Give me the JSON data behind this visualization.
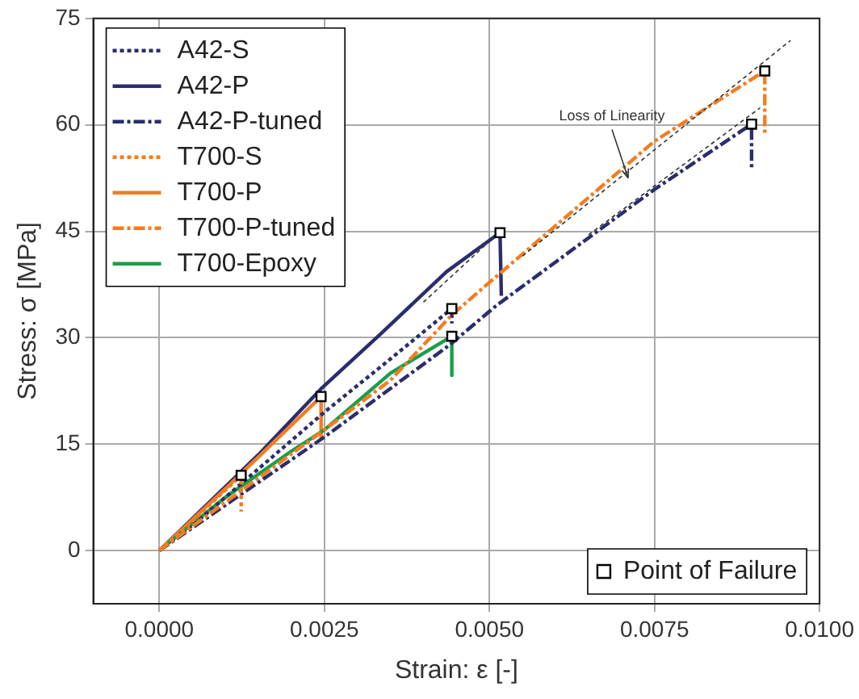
{
  "chart_data": {
    "type": "line",
    "xlabel": "Strain: ε [-]",
    "ylabel": "Stress: σ [MPa]",
    "xlim": [
      -0.001,
      0.01
    ],
    "xticks": [
      {
        "value": 0,
        "label": "0.0000"
      },
      {
        "value": 0.0025,
        "label": "0.0025"
      },
      {
        "value": 0.005,
        "label": "0.0050"
      },
      {
        "value": 0.0075,
        "label": "0.0075"
      },
      {
        "value": 0.01,
        "label": "0.0100"
      }
    ],
    "ylim": [
      -7.5,
      75
    ],
    "yticks": [
      0,
      15,
      30,
      45,
      60,
      75
    ],
    "grid": true,
    "legend": "top left",
    "marker": "none",
    "annotations": [
      {
        "text": "Loss of Linearity",
        "x": 0.0071,
        "y": 52.5
      }
    ],
    "series": [
      {
        "name": "A42-S",
        "color": "#2b2d6e",
        "line_style": "dotted",
        "x": [
          0,
          0.0005,
          0.0015,
          0.0025,
          0.0035,
          0.00443,
          0.00443
        ],
        "values": [
          0,
          3.5,
          11.5,
          19.5,
          27,
          34.1,
          32
        ]
      },
      {
        "name": "A42-P",
        "color": "#2b2d6e",
        "line_style": "solid",
        "x": [
          0,
          0.0005,
          0.001,
          0.0015,
          0.00245,
          0.00335,
          0.00435,
          0.00516,
          0.00518
        ],
        "values": [
          0,
          4.5,
          9,
          13.5,
          22.8,
          30.5,
          39.3,
          44.8,
          35.9
        ]
      },
      {
        "name": "A42-P-tuned",
        "color": "#2b2d6e",
        "line_style": "dashed",
        "x": [
          0,
          0.0025,
          0.0044,
          0.0051,
          0.0075,
          0.00897,
          0.00897
        ],
        "values": [
          0,
          16,
          29,
          34.5,
          50.9,
          60.1,
          54
        ]
      },
      {
        "name": "T700-S",
        "color": "#f47c20",
        "line_style": "dotted",
        "x": [
          0,
          0.0006,
          0.00124,
          0.00124
        ],
        "values": [
          0,
          5,
          10.6,
          5.5
        ]
      },
      {
        "name": "T700-P",
        "color": "#f47c20",
        "line_style": "solid",
        "x": [
          0,
          0.001,
          0.00245,
          0.00245
        ],
        "values": [
          0,
          8.7,
          21.7,
          15.9
        ]
      },
      {
        "name": "T700-P-tuned",
        "color": "#f47c20",
        "line_style": "dashed",
        "x": [
          0,
          0.0025,
          0.0035,
          0.00443,
          0.005,
          0.0075,
          0.00917,
          0.00917
        ],
        "values": [
          0,
          17,
          24,
          33.2,
          37.8,
          57.7,
          67.6,
          58.6
        ]
      },
      {
        "name": "T700-Epoxy",
        "color": "#1a9e4a",
        "line_style": "solid",
        "x": [
          0,
          0.001,
          0.002,
          0.0025,
          0.0035,
          0.00443,
          0.00443
        ],
        "values": [
          0,
          7.5,
          14,
          17,
          25,
          30.2,
          24.7
        ]
      },
      {
        "color": "#333333",
        "line_style": "dotted",
        "x": [
          0.004,
          0.0052
        ],
        "values": [
          35,
          45.3
        ]
      },
      {
        "color": "#333333",
        "line_style": "dotted",
        "x": [
          0.0055,
          0.00956
        ],
        "values": [
          41.5,
          71.9
        ]
      },
      {
        "color": "#333333",
        "line_style": "dotted",
        "x": [
          0.0065,
          0.0091
        ],
        "values": [
          44.5,
          62.4
        ]
      },
      {
        "name": "Point of Failure",
        "type": "scatter",
        "marker": "square",
        "color": "#000000",
        "x": [
          0.00124,
          0.00245,
          0.00443,
          0.00443,
          0.00516,
          0.00897,
          0.00917
        ],
        "values": [
          10.6,
          21.7,
          34.1,
          30.2,
          44.8,
          60.1,
          67.6
        ]
      }
    ]
  }
}
